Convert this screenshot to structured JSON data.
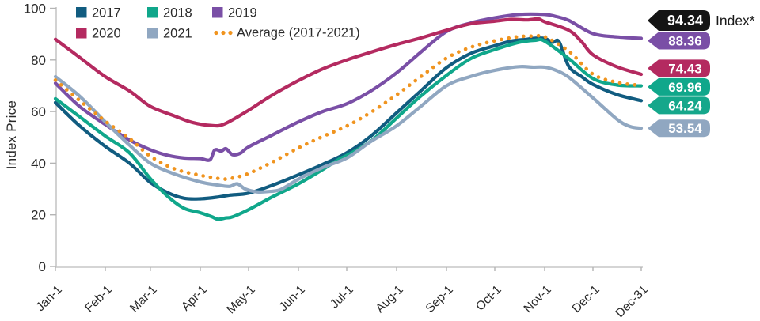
{
  "chart_data": {
    "type": "line",
    "ylabel": "Index Price",
    "ylim": [
      0,
      100
    ],
    "yticks": [
      0,
      20,
      40,
      60,
      80,
      100
    ],
    "xticks": [
      {
        "label": "Jan-1",
        "day": 0
      },
      {
        "label": "Feb-1",
        "day": 31
      },
      {
        "label": "Mar-1",
        "day": 59
      },
      {
        "label": "Apr-1",
        "day": 90
      },
      {
        "label": "May-1",
        "day": 120
      },
      {
        "label": "Jun-1",
        "day": 151
      },
      {
        "label": "Jul-1",
        "day": 181
      },
      {
        "label": "Aug-1",
        "day": 212
      },
      {
        "label": "Sep-1",
        "day": 243
      },
      {
        "label": "Oct-1",
        "day": 273
      },
      {
        "label": "Nov-1",
        "day": 304
      },
      {
        "label": "Dec-1",
        "day": 334
      },
      {
        "label": "Dec-31",
        "day": 364
      }
    ],
    "grid": false,
    "legend_position": "top-left",
    "series": [
      {
        "name": "2017",
        "color": "#115C80",
        "style": "solid",
        "points": [
          [
            0,
            63.5
          ],
          [
            15,
            54.5
          ],
          [
            31,
            46.5
          ],
          [
            46,
            40
          ],
          [
            59,
            32.5
          ],
          [
            70,
            28.5
          ],
          [
            80,
            26.4
          ],
          [
            90,
            26.2
          ],
          [
            100,
            26.8
          ],
          [
            108,
            27.6
          ],
          [
            120,
            28.4
          ],
          [
            135,
            31.5
          ],
          [
            151,
            35.5
          ],
          [
            166,
            39.5
          ],
          [
            181,
            44
          ],
          [
            196,
            50.5
          ],
          [
            212,
            59.5
          ],
          [
            227,
            68
          ],
          [
            243,
            77
          ],
          [
            258,
            82.5
          ],
          [
            273,
            85.5
          ],
          [
            283,
            87.3
          ],
          [
            293,
            88.0
          ],
          [
            298,
            88.4
          ],
          [
            304,
            88.3
          ],
          [
            309,
            86.9
          ],
          [
            313,
            87.0
          ],
          [
            319,
            77.5
          ],
          [
            327,
            73.5
          ],
          [
            334,
            70.5
          ],
          [
            349,
            66.6
          ],
          [
            364,
            64.24
          ]
        ]
      },
      {
        "name": "2018",
        "color": "#10A78B",
        "style": "solid",
        "points": [
          [
            0,
            65
          ],
          [
            15,
            58
          ],
          [
            31,
            50.5
          ],
          [
            46,
            44
          ],
          [
            59,
            34
          ],
          [
            70,
            27
          ],
          [
            80,
            22.5
          ],
          [
            90,
            20.8
          ],
          [
            97,
            19.3
          ],
          [
            101,
            18.3
          ],
          [
            106,
            18.8
          ],
          [
            110,
            19.2
          ],
          [
            120,
            22
          ],
          [
            135,
            27
          ],
          [
            151,
            32
          ],
          [
            166,
            37.5
          ],
          [
            176,
            41.5
          ],
          [
            181,
            43
          ],
          [
            196,
            48.5
          ],
          [
            212,
            57.5
          ],
          [
            227,
            66
          ],
          [
            243,
            74
          ],
          [
            258,
            80.5
          ],
          [
            273,
            84
          ],
          [
            288,
            86.8
          ],
          [
            298,
            87.6
          ],
          [
            304,
            87.3
          ],
          [
            319,
            80.5
          ],
          [
            334,
            72.8
          ],
          [
            349,
            70.3
          ],
          [
            364,
            69.96
          ]
        ]
      },
      {
        "name": "2019",
        "color": "#7A4FA6",
        "style": "solid",
        "points": [
          [
            0,
            71
          ],
          [
            15,
            62
          ],
          [
            31,
            55
          ],
          [
            46,
            49
          ],
          [
            59,
            45.2
          ],
          [
            70,
            43
          ],
          [
            80,
            42
          ],
          [
            90,
            41.8
          ],
          [
            96,
            41.3
          ],
          [
            99,
            45.1
          ],
          [
            103,
            44.7
          ],
          [
            106,
            45.6
          ],
          [
            110,
            43.3
          ],
          [
            115,
            43.9
          ],
          [
            120,
            46.3
          ],
          [
            135,
            51
          ],
          [
            151,
            56
          ],
          [
            166,
            60
          ],
          [
            181,
            63
          ],
          [
            196,
            68
          ],
          [
            212,
            75
          ],
          [
            227,
            83
          ],
          [
            243,
            91
          ],
          [
            258,
            94.3
          ],
          [
            273,
            96.3
          ],
          [
            288,
            97.6
          ],
          [
            304,
            97.6
          ],
          [
            311,
            96.8
          ],
          [
            319,
            95.3
          ],
          [
            334,
            90.2
          ],
          [
            349,
            88.9
          ],
          [
            364,
            88.36
          ]
        ]
      },
      {
        "name": "2020",
        "color": "#B42A60",
        "style": "solid",
        "points": [
          [
            0,
            88
          ],
          [
            15,
            81
          ],
          [
            31,
            73.5
          ],
          [
            46,
            68
          ],
          [
            59,
            62
          ],
          [
            74,
            58.3
          ],
          [
            85,
            55.8
          ],
          [
            97,
            54.6
          ],
          [
            105,
            55.2
          ],
          [
            120,
            60.5
          ],
          [
            135,
            66.5
          ],
          [
            151,
            72
          ],
          [
            166,
            76.5
          ],
          [
            181,
            80
          ],
          [
            196,
            83
          ],
          [
            212,
            86
          ],
          [
            227,
            88.5
          ],
          [
            243,
            91.5
          ],
          [
            258,
            94
          ],
          [
            273,
            95
          ],
          [
            283,
            95.7
          ],
          [
            293,
            95.5
          ],
          [
            300,
            95.9
          ],
          [
            304,
            94.8
          ],
          [
            319,
            91.5
          ],
          [
            327,
            87
          ],
          [
            334,
            82
          ],
          [
            349,
            77.3
          ],
          [
            364,
            74.43
          ]
        ]
      },
      {
        "name": "2021",
        "color": "#90A7C1",
        "style": "solid",
        "points": [
          [
            0,
            73.5
          ],
          [
            15,
            66
          ],
          [
            31,
            56
          ],
          [
            46,
            47
          ],
          [
            59,
            40
          ],
          [
            74,
            35.8
          ],
          [
            90,
            32.7
          ],
          [
            100,
            31.6
          ],
          [
            108,
            31
          ],
          [
            113,
            32
          ],
          [
            118,
            30
          ],
          [
            125,
            28.9
          ],
          [
            132,
            29
          ],
          [
            140,
            29.8
          ],
          [
            151,
            33.8
          ],
          [
            166,
            38.3
          ],
          [
            181,
            42
          ],
          [
            196,
            48.4
          ],
          [
            212,
            54.5
          ],
          [
            227,
            62
          ],
          [
            243,
            70
          ],
          [
            258,
            73.6
          ],
          [
            273,
            76
          ],
          [
            288,
            77.4
          ],
          [
            296,
            77.2
          ],
          [
            304,
            77.2
          ],
          [
            311,
            76
          ],
          [
            319,
            73.3
          ],
          [
            334,
            65.3
          ],
          [
            349,
            57
          ],
          [
            357,
            54.2
          ],
          [
            364,
            53.54
          ]
        ]
      },
      {
        "name": "Average (2017-2021)",
        "color": "#F0941F",
        "style": "dotted",
        "points": [
          [
            0,
            72.2
          ],
          [
            15,
            64.3
          ],
          [
            31,
            56.3
          ],
          [
            46,
            49.6
          ],
          [
            59,
            42.7
          ],
          [
            74,
            37.8
          ],
          [
            90,
            35.3
          ],
          [
            100,
            34.2
          ],
          [
            105,
            33.8
          ],
          [
            110,
            34.2
          ],
          [
            120,
            36
          ],
          [
            135,
            40.5
          ],
          [
            151,
            45.9
          ],
          [
            166,
            50.3
          ],
          [
            181,
            54.4
          ],
          [
            196,
            59.7
          ],
          [
            212,
            66.5
          ],
          [
            227,
            73.5
          ],
          [
            243,
            80.7
          ],
          [
            258,
            84.9
          ],
          [
            273,
            87.4
          ],
          [
            288,
            89.0
          ],
          [
            298,
            89.2
          ],
          [
            304,
            89.0
          ],
          [
            319,
            83.4
          ],
          [
            334,
            74.5
          ],
          [
            349,
            71.3
          ],
          [
            364,
            70.1
          ]
        ]
      }
    ],
    "end_badges": [
      {
        "value": 94.34,
        "display": "94.34",
        "color": "#151515",
        "side_label": "Index*"
      },
      {
        "value": 88.36,
        "display": "88.36",
        "color": "#7A4FA6",
        "side_label": ""
      },
      {
        "value": 74.43,
        "display": "74.43",
        "color": "#B42A60",
        "side_label": ""
      },
      {
        "value": 69.96,
        "display": "69.96",
        "color": "#10A78B",
        "side_label": ""
      },
      {
        "value": 64.24,
        "display": "64.24",
        "color": "#15A78B",
        "side_label": ""
      },
      {
        "value": 53.54,
        "display": "53.54",
        "color": "#90A7C1",
        "side_label": ""
      }
    ]
  },
  "colors": {
    "axis_line": "#c7c7c7",
    "tick_mark": "#b4b4b4",
    "text": "#2a2a2a",
    "badge_text": "#ffffff"
  }
}
